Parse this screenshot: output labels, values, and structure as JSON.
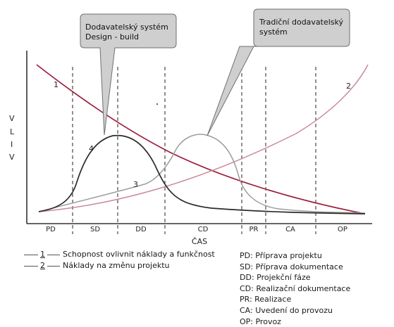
{
  "callouts": {
    "design_build": [
      "Dodavatelský systém",
      "Design - build"
    ],
    "traditional": [
      "Tradiční dodavatelský",
      "systém"
    ]
  },
  "axes": {
    "y_label": [
      "V",
      "L",
      "I",
      "V"
    ],
    "x_label": "ČAS"
  },
  "phases": [
    "PD",
    "SD",
    "DD",
    "CD",
    "PR",
    "CA",
    "OP"
  ],
  "curve_labels": [
    "1",
    "2",
    "3",
    "4"
  ],
  "legend": [
    {
      "num": "1",
      "text": "Schopnost ovlivnit náklady a funkčnost"
    },
    {
      "num": "2",
      "text": "Náklady na změnu projektu"
    }
  ],
  "abbreviations": [
    "PD: Příprava projektu",
    "SD: Příprava dokumentace",
    "DD: Projekční fáze",
    "CD: Realizační dokumentace",
    "PR: Realizace",
    "CA: Uvedení do provozu",
    "OP: Provoz"
  ],
  "colors": {
    "curve1": "#9a1f3c",
    "curve2": "#c98a9a",
    "curve3": "#9d9d9d",
    "curve4": "#2b2b2b",
    "callout_fill": "#cfcfcf"
  }
}
